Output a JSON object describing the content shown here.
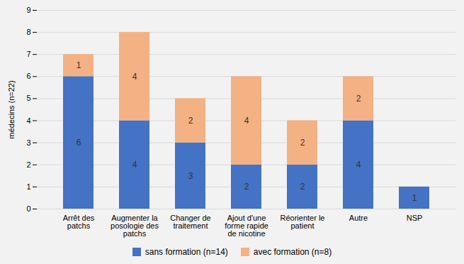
{
  "chart_data": {
    "type": "bar",
    "stacked": true,
    "categories": [
      "Arrêt des\npatchs",
      "Augmenter la\nposologie des\npatchs",
      "Changer de\ntraitement",
      "Ajout d'une\nforme rapide\nde nicotine",
      "Réorienter le\npatient",
      "Autre",
      "NSP"
    ],
    "series": [
      {
        "name": "sans formation (n=14)",
        "color": "#4472C4",
        "values": [
          6,
          4,
          3,
          2,
          2,
          4,
          1
        ]
      },
      {
        "name": "avec formation (n=8)",
        "color": "#F4B183",
        "values": [
          1,
          4,
          2,
          4,
          2,
          2,
          0
        ]
      }
    ],
    "ylabel": "médecins (n=22)",
    "ylim": [
      0,
      9
    ],
    "yticks": [
      0,
      1,
      2,
      3,
      4,
      5,
      6,
      7,
      8,
      9
    ],
    "grid": true,
    "legend": "bottom",
    "data_labels": true
  }
}
